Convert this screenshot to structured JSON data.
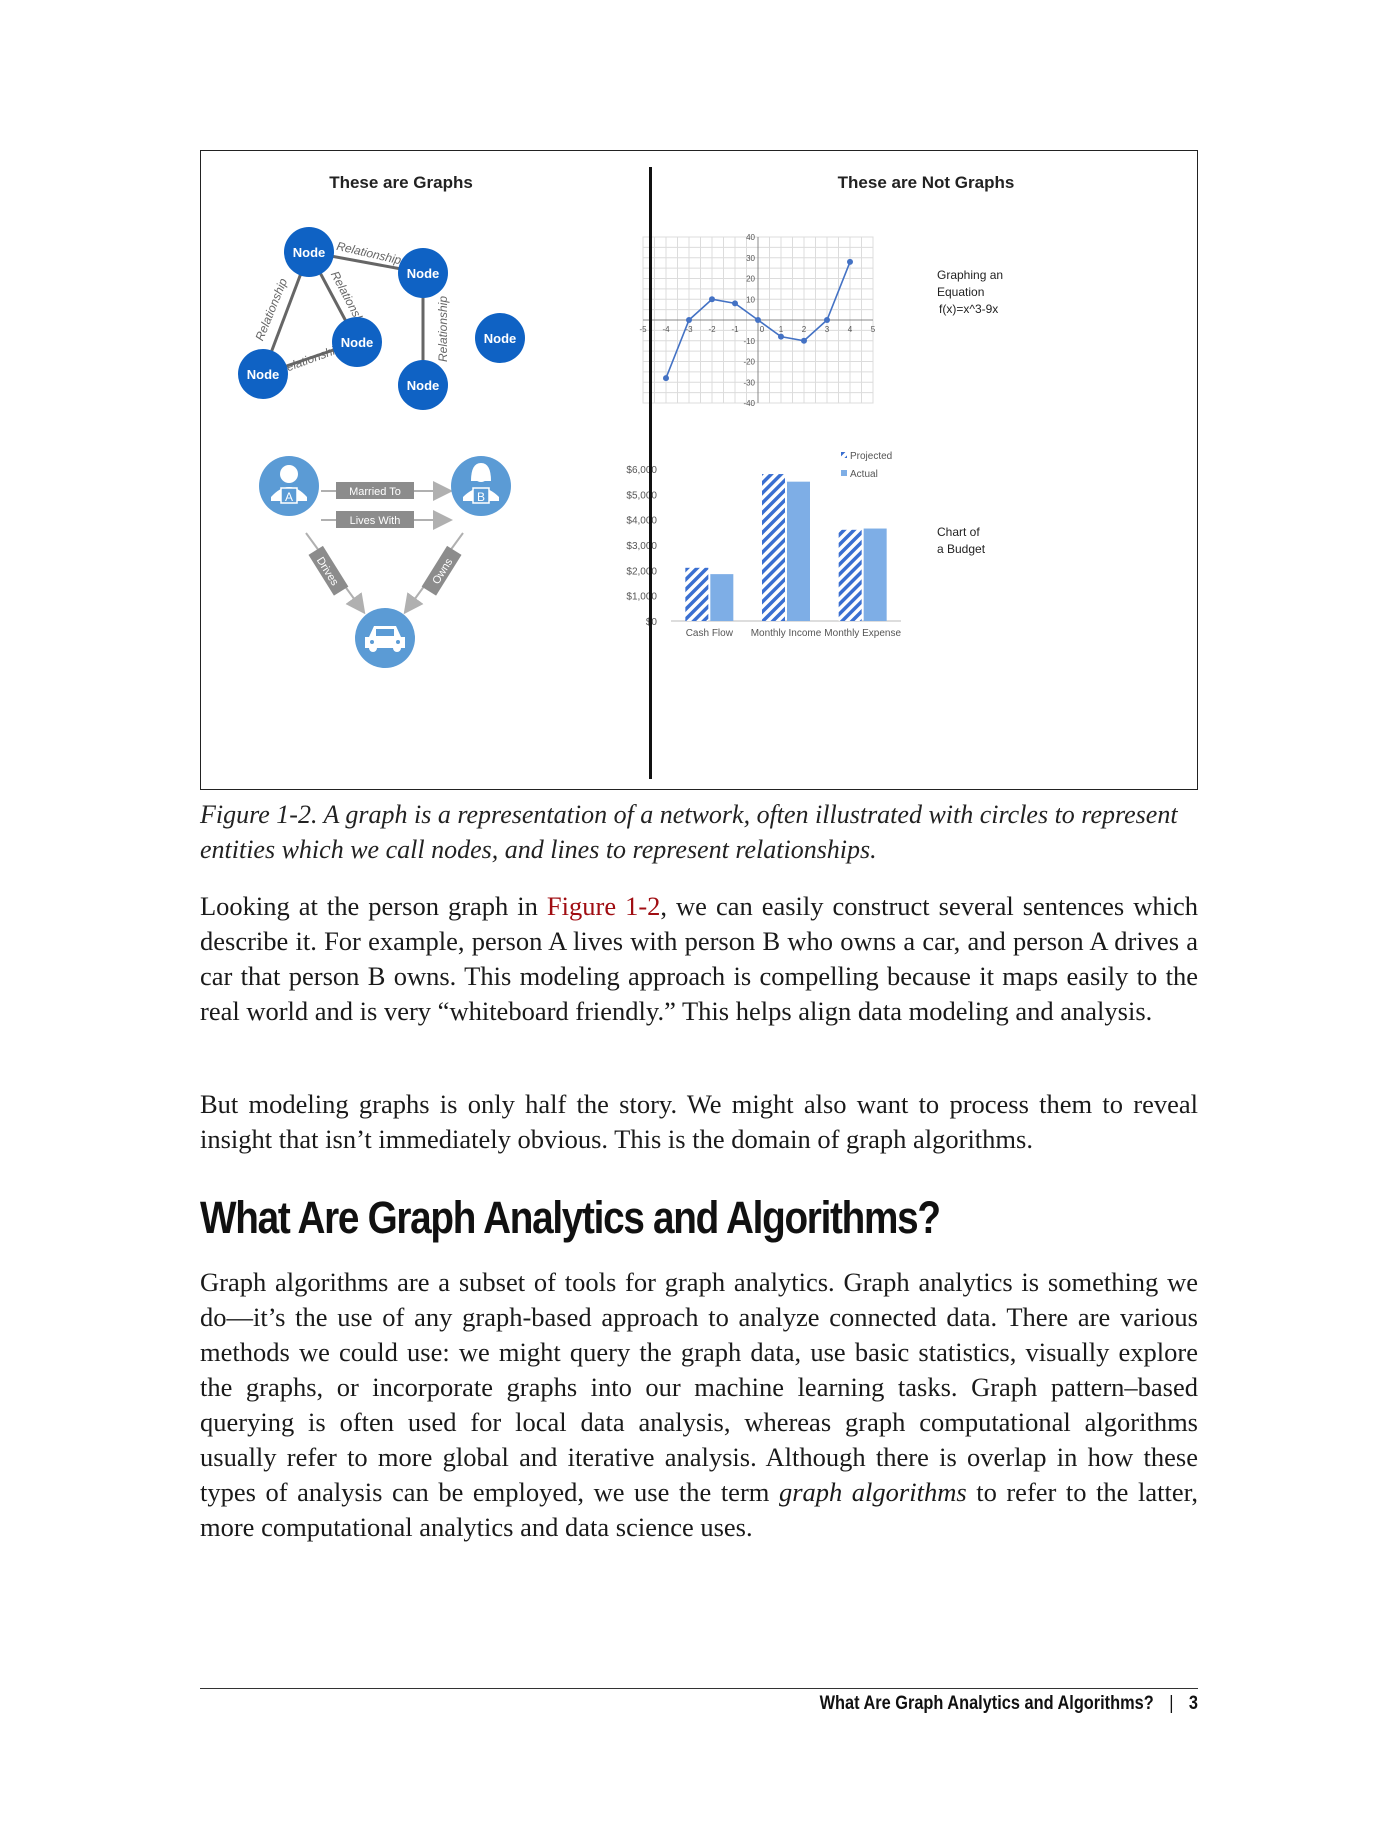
{
  "figure": {
    "left_title": "These are Graphs",
    "right_title": "These are Not Graphs",
    "network": {
      "nodes": [
        {
          "id": "n1",
          "label": "Node"
        },
        {
          "id": "n2",
          "label": "Node"
        },
        {
          "id": "n3",
          "label": "Node"
        },
        {
          "id": "n4",
          "label": "Node"
        },
        {
          "id": "n5",
          "label": "Node"
        },
        {
          "id": "n6",
          "label": "Node"
        }
      ],
      "edges": [
        {
          "label": "Relationship"
        },
        {
          "label": "Relationship"
        },
        {
          "label": "Relationship"
        },
        {
          "label": "Relationship"
        },
        {
          "label": "Relationship"
        }
      ]
    },
    "person_graph": {
      "person_a": "A",
      "person_b": "B",
      "married_to": "Married To",
      "lives_with": "Lives With",
      "drives": "Drives",
      "owns": "Owns"
    },
    "equation_label": [
      "Graphing an",
      "Equation",
      "f(x)=x^3-9x"
    ],
    "budget_label": [
      "Chart of",
      "a Budget"
    ]
  },
  "chart_data": [
    {
      "type": "line",
      "title": "",
      "x": [
        -4,
        -3,
        -2,
        -1,
        0,
        1,
        2,
        3,
        4
      ],
      "series": [
        {
          "values": [
            -28,
            0,
            10,
            8,
            0,
            -8,
            -10,
            0,
            28
          ]
        }
      ],
      "xlim": [
        -5,
        5
      ],
      "ylim": [
        -40,
        40
      ],
      "x_ticks": [
        "-5",
        "-4",
        "-3",
        "-2",
        "-1",
        "0",
        "1",
        "2",
        "3",
        "4",
        "5"
      ],
      "y_ticks": [
        "40",
        "30",
        "20",
        "10",
        "0",
        "-10",
        "-20",
        "-30",
        "-40"
      ],
      "grid": true,
      "marker_color": "#4472c4"
    },
    {
      "type": "bar",
      "categories": [
        "Cash Flow",
        "Monthly Income",
        "Monthly Expense"
      ],
      "series": [
        {
          "name": "Projected",
          "values": [
            2100,
            5800,
            3600
          ],
          "pattern": "hatched"
        },
        {
          "name": "Actual",
          "values": [
            1850,
            5500,
            3650
          ],
          "pattern": "solid"
        }
      ],
      "ylim": [
        0,
        6000
      ],
      "y_ticks": [
        "$0",
        "$1,000",
        "$2,000",
        "$3,000",
        "$4,000",
        "$5,000",
        "$6,000"
      ],
      "legend": "top-right",
      "colors": {
        "projected": "#3a6fd1",
        "actual": "#7eaee6"
      }
    }
  ],
  "caption": "Figure 1-2. A graph is a representation of a network, often illustrated with circles to represent entities which we call nodes, and lines to represent relationships.",
  "paragraph1": {
    "pre": "Looking at the person graph in ",
    "ref": "Figure 1-2",
    "post": ", we can easily construct several sentences which describe it. For example, person A lives with person B who owns a car, and person A drives a car that person B owns. This modeling approach is compelling because it maps easily to the real world and is very “whiteboard friendly.” This helps align data modeling and analysis."
  },
  "paragraph2": "But modeling graphs is only half the story. We might also want to process them to reveal insight that isn’t immediately obvious. This is the domain of graph algorithms.",
  "heading": "What Are Graph Analytics and Algorithms?",
  "paragraph3": {
    "pre": "Graph algorithms are a subset of tools for graph analytics. Graph analytics is something we do—it’s the use of any graph-based approach to analyze connected data. There are various methods we could use: we might query the graph data, use basic statistics, visually explore the graphs, or incorporate graphs into our machine learning tasks. Graph pattern–based querying is often used for local data analysis, whereas graph computational algorithms usually refer to more global and iterative analysis. Although there is overlap in how these types of analysis can be employed, we use the term ",
    "em": "graph algorithms",
    "post": " to refer to the latter, more computational analytics and data science uses."
  },
  "footer": {
    "running_title": "What Are Graph Analytics and Algorithms?",
    "separator": "|",
    "page_number": "3"
  }
}
